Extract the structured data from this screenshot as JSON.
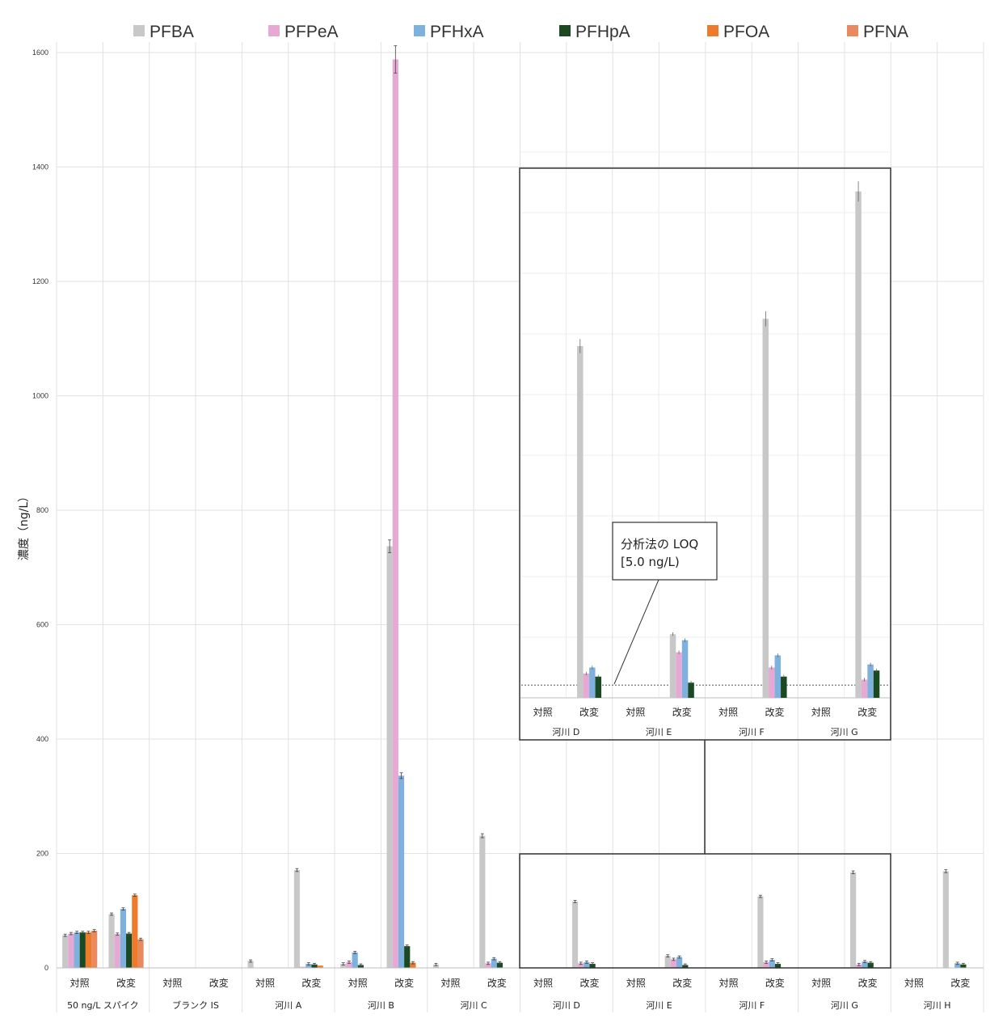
{
  "chart_data": {
    "type": "bar",
    "ylabel": "濃度（ng/L）",
    "ylim": [
      0,
      1650
    ],
    "yticks": [
      0,
      200,
      400,
      600,
      800,
      1000,
      1200,
      1400,
      1600
    ],
    "grid": true,
    "legend_position": "top",
    "series": [
      {
        "name": "PFBA",
        "color": "#c8c8c8"
      },
      {
        "name": "PFPeA",
        "color": "#e6a9d4"
      },
      {
        "name": "PFHxA",
        "color": "#7fb1de"
      },
      {
        "name": "PFHpA",
        "color": "#1b4a22"
      },
      {
        "name": "PFOA",
        "color": "#ee7a2a"
      },
      {
        "name": "PFNA",
        "color": "#e8895f"
      }
    ],
    "groups": [
      {
        "label": "50 ng/L スパイク",
        "categories": [
          {
            "label": "対照",
            "values": [
              57,
              60,
              62,
              62,
              62,
              65
            ]
          },
          {
            "label": "改変",
            "values": [
              94,
              59,
              103,
              60,
              127,
              50
            ]
          }
        ]
      },
      {
        "label": "ブランク IS",
        "categories": [
          {
            "label": "対照",
            "values": [
              0,
              0,
              0,
              0,
              0,
              0
            ]
          },
          {
            "label": "改変",
            "values": [
              0,
              0,
              0,
              0,
              0,
              0
            ]
          }
        ]
      },
      {
        "label": "河川 A",
        "categories": [
          {
            "label": "対照",
            "values": [
              12,
              0,
              0,
              0,
              0,
              0
            ]
          },
          {
            "label": "改変",
            "values": [
              171,
              2,
              7,
              6,
              4,
              0
            ]
          }
        ]
      },
      {
        "label": "河川 B",
        "categories": [
          {
            "label": "対照",
            "values": [
              7,
              10,
              27,
              5,
              0,
              0
            ]
          },
          {
            "label": "改変",
            "values": [
              737,
              1588,
              336,
              38,
              9,
              0
            ]
          }
        ]
      },
      {
        "label": "河川 C",
        "categories": [
          {
            "label": "対照",
            "values": [
              6,
              0,
              0,
              0,
              0,
              0
            ]
          },
          {
            "label": "改変",
            "values": [
              231,
              8,
              16,
              9,
              0,
              0
            ]
          }
        ]
      },
      {
        "label": "河川 D",
        "categories": [
          {
            "label": "対照",
            "values": [
              0,
              0,
              0,
              0,
              0,
              0
            ]
          },
          {
            "label": "改変",
            "values": [
              116,
              8,
              10,
              7,
              0,
              0
            ]
          }
        ]
      },
      {
        "label": "河川 E",
        "categories": [
          {
            "label": "対照",
            "values": [
              0,
              0,
              0,
              0,
              0,
              0
            ]
          },
          {
            "label": "改変",
            "values": [
              21,
              15,
              19,
              5,
              0,
              0
            ]
          }
        ]
      },
      {
        "label": "河川 F",
        "categories": [
          {
            "label": "対照",
            "values": [
              0,
              0,
              0,
              0,
              0,
              0
            ]
          },
          {
            "label": "改変",
            "values": [
              125,
              10,
              14,
              7,
              0,
              0
            ]
          }
        ]
      },
      {
        "label": "河川 G",
        "categories": [
          {
            "label": "対照",
            "values": [
              0,
              0,
              0,
              0,
              0,
              0
            ]
          },
          {
            "label": "改変",
            "values": [
              167,
              6,
              11,
              9,
              0,
              0
            ]
          }
        ]
      },
      {
        "label": "河川 H",
        "categories": [
          {
            "label": "対照",
            "values": [
              0,
              0,
              0,
              0,
              0,
              0
            ]
          },
          {
            "label": "改変",
            "values": [
              169,
              0,
              8,
              6,
              0,
              0
            ]
          }
        ]
      }
    ],
    "inset": {
      "annotation": [
        "分析法の LOQ",
        "[5.0 ng/L)"
      ],
      "loq": 5,
      "groups": [
        {
          "label": "河川 D",
          "categories": [
            {
              "label": "対照",
              "values": [
                0,
                0,
                0,
                0
              ]
            },
            {
              "label": "改変",
              "values": [
                116,
                8,
                10,
                7
              ]
            }
          ]
        },
        {
          "label": "河川 E",
          "categories": [
            {
              "label": "対照",
              "values": [
                0,
                0,
                0,
                0
              ]
            },
            {
              "label": "改変",
              "values": [
                21,
                15,
                19,
                5
              ]
            }
          ]
        },
        {
          "label": "河川 F",
          "categories": [
            {
              "label": "対照",
              "values": [
                0,
                0,
                0,
                0
              ]
            },
            {
              "label": "改変",
              "values": [
                125,
                10,
                14,
                7
              ]
            }
          ]
        },
        {
          "label": "河川 G",
          "categories": [
            {
              "label": "対照",
              "values": [
                0,
                0,
                0,
                0
              ]
            },
            {
              "label": "改変",
              "values": [
                167,
                6,
                11,
                9
              ]
            }
          ]
        }
      ]
    }
  }
}
